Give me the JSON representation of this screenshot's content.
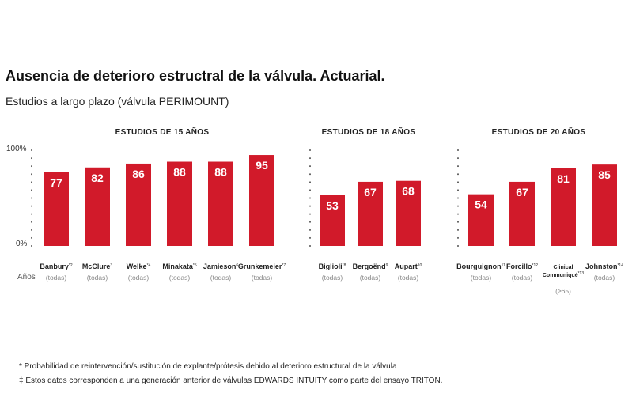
{
  "title": "Ausencia de deterioro estructral de la válvula. Actuarial.",
  "subtitle": "Estudios a largo plazo (válvula PERIMOUNT)",
  "footnotes": [
    "* Probabilidad de reintervención/sustitución de explante/prótesis debido al deterioro estructural de la válvula",
    "‡ Estos datos corresponden a una generación anterior de válvulas EDWARDS INTUITY como parte del ensayo TRITON."
  ],
  "chart_data": {
    "type": "bar",
    "y_tick_labels": [
      "100%",
      "0%"
    ],
    "ylim": [
      0,
      100
    ],
    "row_label": "Años",
    "bar_color": "#d11a2a",
    "panels": [
      {
        "title": "ESTUDIOS DE 15 AÑOS",
        "categories": [
          "Banbury",
          "McClure",
          "Welke",
          "Minakata",
          "Jamieson",
          "Grunkemeier"
        ],
        "superscripts": [
          "*2",
          "3",
          "*4",
          "*5",
          "6",
          "*7"
        ],
        "sublabels": [
          [
            "(todas)"
          ],
          [
            "(todas)"
          ],
          [
            "(todas)"
          ],
          [
            "(todas)"
          ],
          [
            "(todas)"
          ],
          [
            "(todas)"
          ]
        ],
        "values": [
          77,
          82,
          86,
          88,
          88,
          95
        ]
      },
      {
        "title": "ESTUDIOS DE 18 AÑOS",
        "categories": [
          "Biglioli",
          "Bergoënd",
          "Aupart"
        ],
        "superscripts": [
          "*8",
          "9",
          "10"
        ],
        "sublabels": [
          [
            "(todas)"
          ],
          [
            "(todas)"
          ],
          [
            "(todas)"
          ]
        ],
        "values": [
          53,
          67,
          68
        ]
      },
      {
        "title": "ESTUDIOS DE 20 AÑOS",
        "categories": [
          "Bourguignon",
          "Forcillo",
          "Clinical Communiqué",
          "Johnston"
        ],
        "superscripts": [
          "11",
          "*12",
          "*13",
          "*14"
        ],
        "sublabels": [
          [
            "(todas)"
          ],
          [
            "(todas)"
          ],
          [
            "(≥65)"
          ],
          [
            "(todas)"
          ]
        ],
        "values": [
          54,
          67,
          81,
          85
        ]
      }
    ]
  }
}
